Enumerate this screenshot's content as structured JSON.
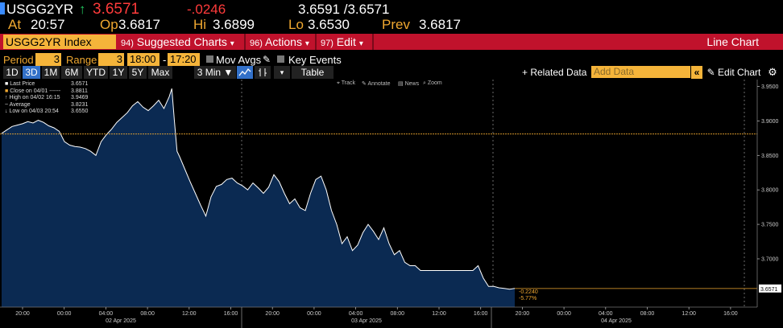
{
  "quote": {
    "ticker": "USGG2YR",
    "up_arrow": "↑",
    "last": "3.6571",
    "change": "-.0246",
    "bid_ask": "3.6591 /3.6571",
    "at_label": "At",
    "at_value": "20:57",
    "open_label": "Op",
    "open_value": "3.6817",
    "high_label": "Hi",
    "high_value": "3.6899",
    "low_label": "Lo",
    "low_value": "3.6530",
    "prev_label": "Prev",
    "prev_value": "3.6817"
  },
  "command_bar": {
    "security": "USGG2YR Index",
    "suggested": {
      "num": "94)",
      "label": "Suggested Charts",
      "caret": "▾"
    },
    "actions": {
      "num": "96)",
      "label": "Actions",
      "caret": "▾"
    },
    "edit": {
      "num": "97)",
      "label": "Edit",
      "caret": "▾"
    },
    "chart_type": "Line Chart"
  },
  "period_row": {
    "period_label": "Period",
    "period_value": "3",
    "range_label": "Range",
    "range_value": "3",
    "from_time": "18:00",
    "dash": "-",
    "to_time": "17:20",
    "mov_avgs": "Mov Avgs",
    "key_events": "Key Events"
  },
  "toolbar": {
    "ranges": [
      "1D",
      "3D",
      "1M",
      "6M",
      "YTD",
      "1Y",
      "5Y",
      "Max"
    ],
    "selected_range": "3D",
    "interval": "3 Min ▼",
    "table": "Table",
    "related": "+ Related Data",
    "add_data_placeholder": "Add Data",
    "collapse": "«",
    "edit_chart": "Edit Chart",
    "settings_icon": "gear-icon"
  },
  "chart_tools": [
    "Track",
    "Annotate",
    "News",
    "Zoom"
  ],
  "legend": [
    {
      "label": "Last Price",
      "value": "3.6571"
    },
    {
      "label": "Close on 04/01 ------",
      "value": "3.8811"
    },
    {
      "label": "High on 04/02 16:15",
      "value": "3.9469"
    },
    {
      "label": "Average",
      "value": "3.8231"
    },
    {
      "label": "Low on 04/03 20:54",
      "value": "3.6550"
    }
  ],
  "chart_data": {
    "type": "area",
    "title": "",
    "ylim": [
      3.63,
      3.96
    ],
    "y_ticks": [
      "3.9500",
      "3.9000",
      "3.8500",
      "3.8000",
      "3.7500",
      "3.7000"
    ],
    "x_ticks": [
      "20:00",
      "00:00",
      "04:00",
      "08:00",
      "12:00",
      "16:00",
      "20:00",
      "00:00",
      "04:00",
      "08:00",
      "12:00",
      "16:00",
      "20:00",
      "00:00",
      "04:00",
      "08:00",
      "12:00",
      "16:00"
    ],
    "date_labels": [
      "02 Apr 2025",
      "03 Apr 2025",
      "04 Apr 2025"
    ],
    "prev_close": 3.8811,
    "last_price_label": "3.6571",
    "change_label": "-0.2240",
    "change_pct_label": "-5.77%",
    "colors": {
      "fill": "#0b2a52",
      "line": "#ffffff",
      "close_line": "#f0a830",
      "change": "#f0a830"
    },
    "series": [
      {
        "hours": [
          0,
          0.5,
          1,
          1.5,
          2,
          2.5,
          3,
          3.5,
          4,
          4.5,
          5,
          5.5,
          6,
          6.5,
          7,
          7.5,
          8,
          8.5,
          9,
          9.5,
          10,
          10.5,
          11,
          11.5,
          12,
          12.5,
          13,
          13.5,
          14,
          14.5,
          15,
          15.5,
          16,
          16.25,
          16.5,
          16.75,
          17,
          17.5,
          18,
          18.5,
          19,
          19.5,
          20,
          20.5,
          21,
          21.5,
          22,
          22.5,
          23,
          23.5,
          24,
          24.5,
          25,
          25.5,
          26,
          26.5,
          27,
          27.5,
          28,
          28.5,
          29,
          29.5,
          30,
          30.5,
          31,
          31.5,
          32,
          32.5,
          33,
          33.5,
          34,
          34.5,
          35,
          35.5,
          36,
          36.5,
          37,
          37.5,
          38,
          38.5,
          39,
          39.5,
          40,
          40.5,
          41,
          41.5,
          42,
          42.5,
          43,
          43.5,
          44,
          44.5,
          45,
          45.5,
          46,
          46.5,
          47,
          47.5,
          48,
          48.5,
          49
        ],
        "values": [
          3.882,
          3.887,
          3.892,
          3.894,
          3.896,
          3.899,
          3.897,
          3.901,
          3.898,
          3.893,
          3.89,
          3.885,
          3.87,
          3.865,
          3.863,
          3.862,
          3.86,
          3.856,
          3.85,
          3.87,
          3.88,
          3.888,
          3.898,
          3.905,
          3.912,
          3.922,
          3.928,
          3.92,
          3.915,
          3.922,
          3.93,
          3.918,
          3.935,
          3.9469,
          3.9,
          3.856,
          3.848,
          3.83,
          3.812,
          3.795,
          3.778,
          3.762,
          3.79,
          3.805,
          3.808,
          3.815,
          3.817,
          3.81,
          3.806,
          3.8,
          3.81,
          3.803,
          3.795,
          3.804,
          3.822,
          3.812,
          3.795,
          3.78,
          3.787,
          3.774,
          3.77,
          3.795,
          3.815,
          3.82,
          3.8,
          3.77,
          3.75,
          3.722,
          3.732,
          3.712,
          3.72,
          3.738,
          3.75,
          3.74,
          3.728,
          3.745,
          3.722,
          3.706,
          3.712,
          3.695,
          3.69,
          3.69,
          3.683,
          3.683,
          3.683,
          3.683,
          3.683,
          3.683,
          3.683,
          3.683,
          3.683,
          3.683,
          3.683,
          3.69,
          3.672,
          3.66,
          3.66,
          3.658,
          3.657,
          3.656,
          3.657
        ]
      }
    ]
  }
}
